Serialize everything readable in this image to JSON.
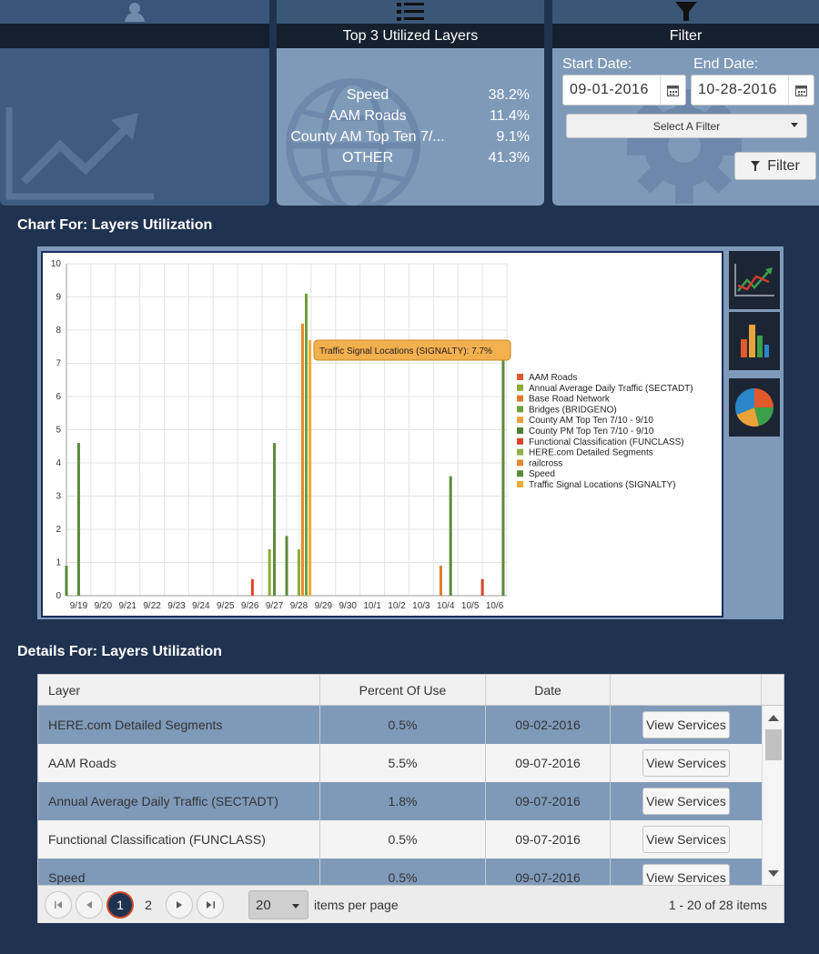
{
  "top3": {
    "title": "Top 3 Utilized Layers",
    "items": [
      {
        "name": "Speed",
        "percent": "38.2%"
      },
      {
        "name": "AAM Roads",
        "percent": "11.4%"
      },
      {
        "name": "County AM Top Ten 7/...",
        "percent": "9.1%"
      },
      {
        "name": "OTHER",
        "percent": "41.3%"
      }
    ]
  },
  "filter": {
    "title": "Filter",
    "start_label": "Start Date:",
    "end_label": "End Date:",
    "start_value": "09-01-2016",
    "end_value": "10-28-2016",
    "select_value": "Select A Filter",
    "button_label": "Filter"
  },
  "chart_section_title": "Chart For: Layers Utilization",
  "chart_data": {
    "type": "bar",
    "x_ticks": [
      "9/19",
      "9/20",
      "9/21",
      "9/22",
      "9/23",
      "9/24",
      "9/25",
      "9/26",
      "9/27",
      "9/28",
      "9/29",
      "9/30",
      "10/1",
      "10/2",
      "10/3",
      "10/4",
      "10/5",
      "10/6"
    ],
    "y_ticks": [
      "0",
      "1",
      "2",
      "3",
      "4",
      "5",
      "6",
      "7",
      "8",
      "9",
      "10"
    ],
    "ylim": [
      0,
      10
    ],
    "grid": true,
    "legend_position": "right",
    "tooltip": "Traffic Signal Locations (SIGNALTY): 7.7%",
    "legend": [
      {
        "name": "AAM Roads",
        "color": "#e05a2b"
      },
      {
        "name": "Annual Average Daily Traffic (SECTADT)",
        "color": "#8eab3a"
      },
      {
        "name": "Base Road Network",
        "color": "#e07b2b"
      },
      {
        "name": "Bridges (BRIDGENO)",
        "color": "#6fa03c"
      },
      {
        "name": "County AM Top Ten 7/10 - 9/10",
        "color": "#e9a33a"
      },
      {
        "name": "County PM Top Ten 7/10 - 9/10",
        "color": "#4f7d34"
      },
      {
        "name": "Functional Classification (FUNCLASS)",
        "color": "#d9442b"
      },
      {
        "name": "HERE.com Detailed Segments",
        "color": "#93b04a"
      },
      {
        "name": "railcross",
        "color": "#e58a2e"
      },
      {
        "name": "Speed",
        "color": "#5b8a3a"
      },
      {
        "name": "Traffic Signal Locations (SIGNALTY)",
        "color": "#eeaa33"
      }
    ],
    "bars": [
      {
        "day": 0,
        "offset": -0.5,
        "value": 0.9,
        "color": "#5b8a3a"
      },
      {
        "day": 0,
        "offset": 0.0,
        "value": 4.6,
        "color": "#5b8a3a"
      },
      {
        "day": 7,
        "offset": 0.1,
        "value": 0.5,
        "color": "#d9442b"
      },
      {
        "day": 8,
        "offset": -0.2,
        "value": 1.4,
        "color": "#8eab3a"
      },
      {
        "day": 8,
        "offset": 0.0,
        "value": 4.6,
        "color": "#5b8a3a"
      },
      {
        "day": 8,
        "offset": 0.5,
        "value": 1.8,
        "color": "#5b8a3a"
      },
      {
        "day": 9,
        "offset": 0.0,
        "value": 1.4,
        "color": "#8eab3a"
      },
      {
        "day": 9,
        "offset": 0.15,
        "value": 8.2,
        "color": "#e58a2e"
      },
      {
        "day": 9,
        "offset": 0.3,
        "value": 9.1,
        "color": "#6fa03c"
      },
      {
        "day": 9,
        "offset": 0.45,
        "value": 7.7,
        "color": "#eeaa33"
      },
      {
        "day": 15,
        "offset": -0.2,
        "value": 0.9,
        "color": "#e07b2b"
      },
      {
        "day": 15,
        "offset": 0.2,
        "value": 3.6,
        "color": "#5b8a3a"
      },
      {
        "day": 16,
        "offset": 0.5,
        "value": 0.5,
        "color": "#d9442b"
      },
      {
        "day": 17,
        "offset": 0.35,
        "value": 7.2,
        "color": "#5b8a3a"
      }
    ]
  },
  "details_section_title": "Details For: Layers Utilization",
  "grid": {
    "columns": [
      "Layer",
      "Percent Of Use",
      "Date",
      ""
    ],
    "rows": [
      {
        "layer": "HERE.com Detailed Segments",
        "percent": "0.5%",
        "date": "09-02-2016",
        "action": "View Services"
      },
      {
        "layer": "AAM Roads",
        "percent": "5.5%",
        "date": "09-07-2016",
        "action": "View Services"
      },
      {
        "layer": "Annual Average Daily Traffic (SECTADT)",
        "percent": "1.8%",
        "date": "09-07-2016",
        "action": "View Services"
      },
      {
        "layer": "Functional Classification (FUNCLASS)",
        "percent": "0.5%",
        "date": "09-07-2016",
        "action": "View Services"
      },
      {
        "layer": "Speed",
        "percent": "0.5%",
        "date": "09-07-2016",
        "action": "View Services"
      }
    ],
    "pager": {
      "pages": [
        "1",
        "2"
      ],
      "page_size": "20",
      "items_per_page_label": "items per page",
      "summary": "1 - 20 of 28 items"
    }
  },
  "colors": {
    "background": "#1f3350",
    "panel": "#7f9ab9",
    "panel_dark": "#3e5c7f",
    "header_bar": "#14202e"
  }
}
